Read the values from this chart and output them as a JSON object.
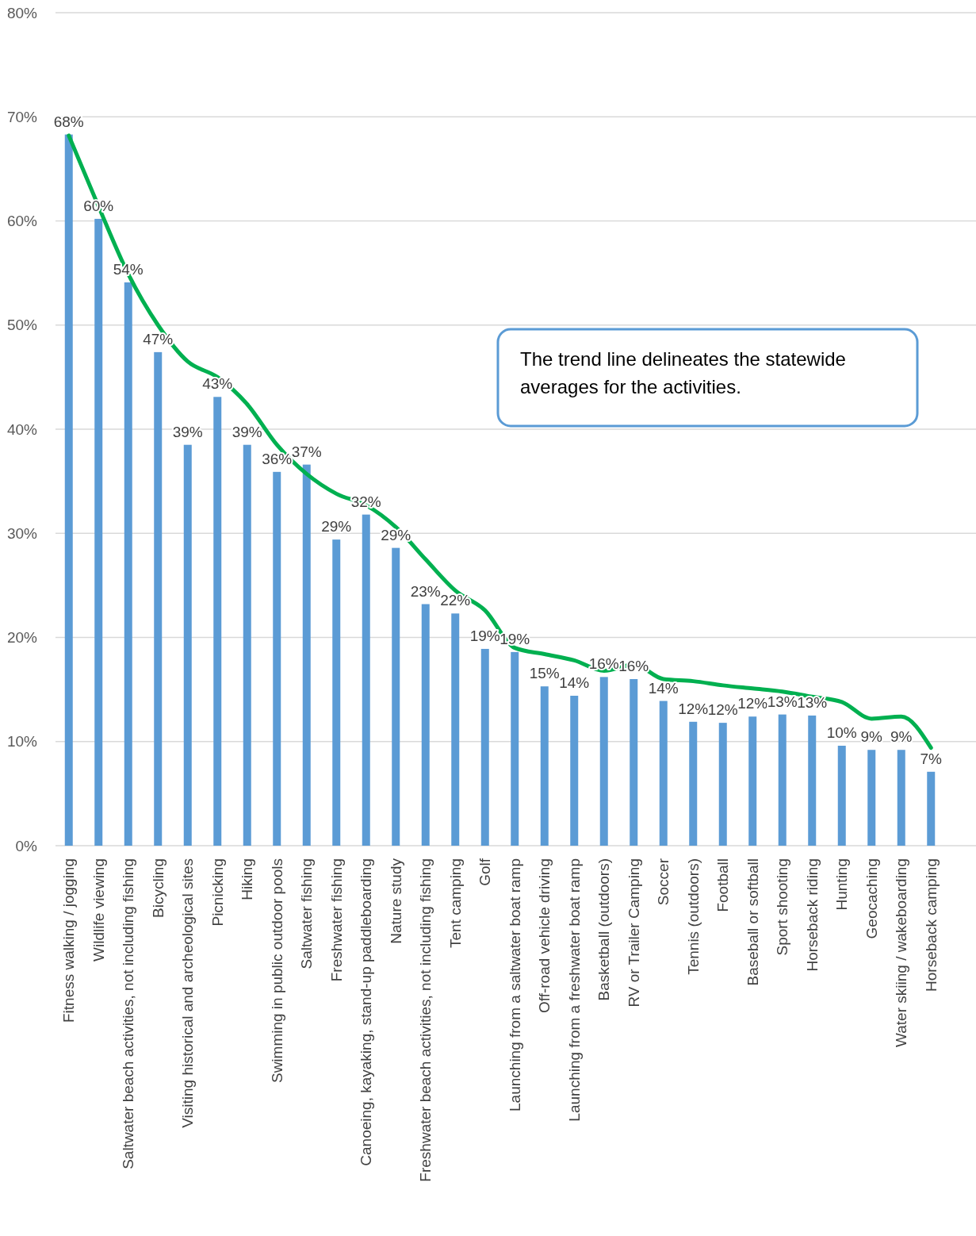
{
  "chart_data": {
    "type": "bar",
    "categories": [
      "Fitness walking / jogging",
      "Wildlife viewing",
      "Saltwater beach activities, not including fishing",
      "Bicycling",
      "Visiting historical and archeological sites",
      "Picnicking",
      "Hiking",
      "Swimming in public outdoor pools",
      "Saltwater fishing",
      "Freshwater fishing",
      "Canoeing, kayaking, stand-up paddleboarding",
      "Nature study",
      "Freshwater beach activities, not including fishing",
      "Tent camping",
      "Golf",
      "Launching from a saltwater boat ramp",
      "Off-road vehicle driving",
      "Launching from a freshwater boat ramp",
      "Basketball (outdoors)",
      "RV or Trailer Camping",
      "Soccer",
      "Tennis (outdoors)",
      "Football",
      "Baseball or softball",
      "Sport shooting",
      "Horseback riding",
      "Hunting",
      "Geocaching",
      "Water skiing / wakeboarding",
      "Horseback camping"
    ],
    "series": [
      {
        "color": "#5b9bd5",
        "values": [
          68.3,
          60.2,
          54.1,
          47.4,
          38.5,
          43.1,
          38.5,
          35.9,
          36.6,
          29.4,
          31.8,
          28.6,
          23.2,
          22.3,
          18.9,
          18.6,
          15.3,
          14.4,
          16.2,
          16.0,
          13.9,
          11.9,
          11.8,
          12.4,
          12.6,
          12.5,
          9.6,
          9.2,
          9.2,
          7.1
        ],
        "value_labels": [
          "68%",
          "60%",
          "54%",
          "47%",
          "39%",
          "43%",
          "39%",
          "36%",
          "37%",
          "29%",
          "32%",
          "29%",
          "23%",
          "22%",
          "19%",
          "19%",
          "15%",
          "14%",
          "16%",
          "16%",
          "14%",
          "12%",
          "12%",
          "12%",
          "13%",
          "13%",
          "10%",
          "9%",
          "9%",
          "7%"
        ]
      },
      {
        "type": "line",
        "color": "#00b050",
        "values": [
          68.2,
          61.4,
          54.9,
          50.0,
          46.5,
          45.0,
          42.4,
          38.5,
          35.7,
          33.8,
          32.7,
          30.6,
          27.5,
          24.5,
          22.6,
          19.0,
          18.4,
          17.8,
          16.8,
          17.4,
          16.0,
          15.8,
          15.4,
          15.1,
          14.8,
          14.3,
          13.8,
          12.2,
          12.4,
          9.4
        ]
      }
    ],
    "ylim": [
      0,
      80
    ],
    "yticks": [
      {
        "value": 0,
        "label": "0%"
      },
      {
        "value": 10,
        "label": "10%"
      },
      {
        "value": 20,
        "label": "20%"
      },
      {
        "value": 30,
        "label": "30%"
      },
      {
        "value": 40,
        "label": "40%"
      },
      {
        "value": 50,
        "label": "50%"
      },
      {
        "value": 60,
        "label": "60%"
      },
      {
        "value": 70,
        "label": "70%"
      },
      {
        "value": 80,
        "label": "80%"
      }
    ],
    "grid": "y",
    "marker": "none",
    "line_style": "solid",
    "annotations": [
      "The trend line delineates the statewide averages for the activities."
    ]
  }
}
